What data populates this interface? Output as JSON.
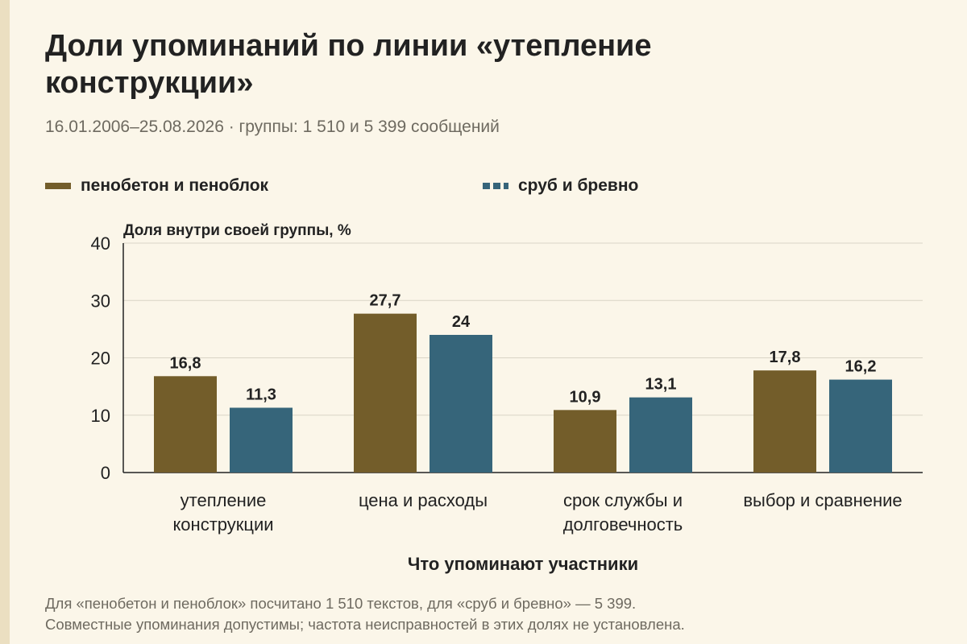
{
  "header": {
    "title": "Доли упоминаний по линии «утепление конструкции»",
    "subtitle": "16.01.2006–25.08.2026 · группы: 1 510 и 5 399 сообщений"
  },
  "legend": {
    "items": [
      {
        "label": "пенобетон и пеноблок",
        "color": "#735d2a",
        "style": "solid"
      },
      {
        "label": "сруб и бревно",
        "color": "#36657a",
        "style": "dashed"
      }
    ]
  },
  "chart_data": {
    "type": "bar",
    "ylabel": "Доля внутри своей группы, %",
    "xlabel": "Что упоминают участники",
    "ylim": [
      0,
      40
    ],
    "yticks": [
      0,
      10,
      20,
      30,
      40
    ],
    "grid": true,
    "legend_position": "top",
    "categories": [
      [
        "утепление",
        "конструкции"
      ],
      [
        "цена и расходы"
      ],
      [
        "срок службы и",
        "долговечность"
      ],
      [
        "выбор и сравнение"
      ]
    ],
    "series": [
      {
        "name": "пенобетон и пеноблок",
        "color": "#735d2a",
        "values": [
          16.8,
          27.7,
          10.9,
          17.8
        ],
        "labels": [
          "16,8",
          "27,7",
          "10,9",
          "17,8"
        ]
      },
      {
        "name": "сруб и бревно",
        "color": "#36657a",
        "values": [
          11.3,
          24,
          13.1,
          16.2
        ],
        "labels": [
          "11,3",
          "24",
          "13,1",
          "16,2"
        ]
      }
    ]
  },
  "footnote": {
    "line1": "Для «пенобетон и пеноблок» посчитано 1 510 текстов, для «сруб и бревно» — 5 399.",
    "line2": "Совместные упоминания допустимы; частота неисправностей в этих долях не установлена."
  }
}
